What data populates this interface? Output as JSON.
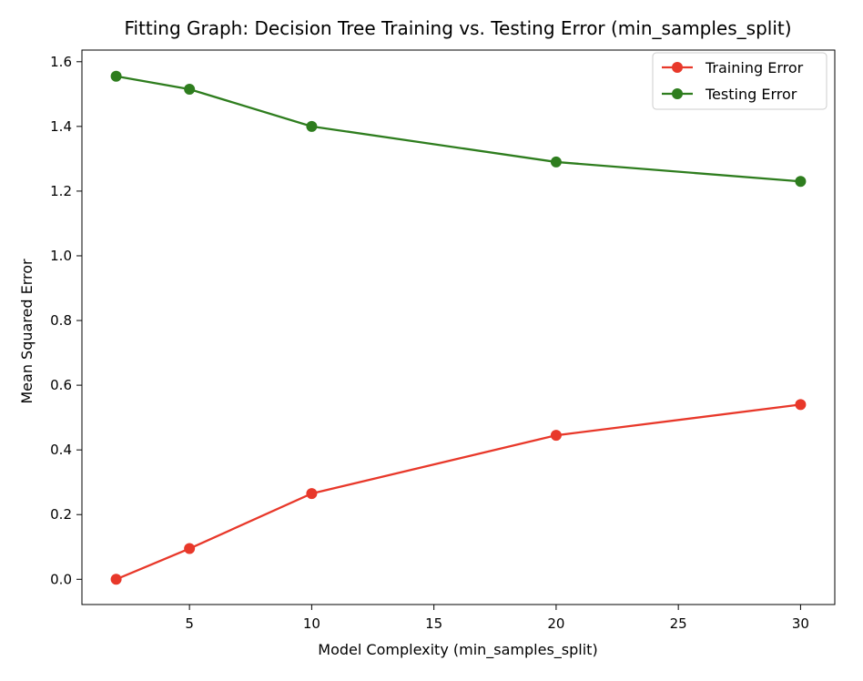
{
  "chart_data": {
    "type": "line",
    "title": "Fitting Graph: Decision Tree Training vs. Testing Error (min_samples_split)",
    "xlabel": "Model Complexity (min_samples_split)",
    "ylabel": "Mean Squared Error",
    "x": [
      2,
      5,
      10,
      20,
      30
    ],
    "xlim": [
      0.6,
      31.4
    ],
    "ylim": [
      -0.078,
      1.636
    ],
    "xticks": [
      5,
      10,
      15,
      20,
      25,
      30
    ],
    "xtick_labels": [
      "5",
      "10",
      "15",
      "20",
      "25",
      "30"
    ],
    "yticks": [
      0.0,
      0.2,
      0.4,
      0.6,
      0.8,
      1.0,
      1.2,
      1.4,
      1.6
    ],
    "ytick_labels": [
      "0.0",
      "0.2",
      "0.4",
      "0.6",
      "0.8",
      "1.0",
      "1.2",
      "1.4",
      "1.6"
    ],
    "grid": false,
    "legend_position": "top-right",
    "series": [
      {
        "name": "Training Error",
        "color": "#e8382a",
        "marker": "circle",
        "values": [
          0.0,
          0.095,
          0.265,
          0.445,
          0.54
        ]
      },
      {
        "name": "Testing Error",
        "color": "#2e7d1e",
        "marker": "circle",
        "values": [
          1.555,
          1.515,
          1.4,
          1.29,
          1.23
        ]
      }
    ]
  }
}
